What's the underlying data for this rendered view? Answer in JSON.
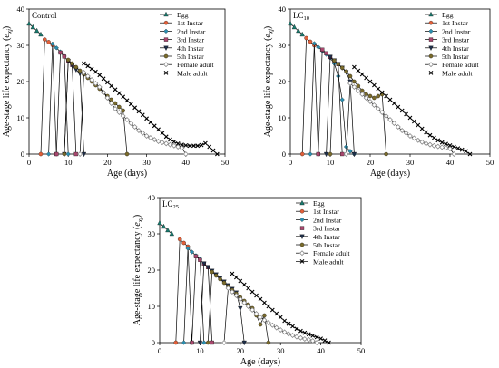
{
  "chart_data": [
    {
      "type": "line",
      "title": "",
      "panel_label": "Control",
      "panel_label_sub": "",
      "xlabel": "Age (days)",
      "ylabel": "Age-stage life expectancy",
      "ylabel_symbol": "e",
      "ylabel_sub": "xj",
      "xlim": [
        0,
        50
      ],
      "ylim": [
        0,
        40
      ],
      "xticks": [
        0,
        10,
        20,
        30,
        40,
        50
      ],
      "yticks": [
        0,
        10,
        20,
        30,
        40
      ],
      "legend_position": "top-right",
      "grid": false,
      "series": [
        {
          "name": "Egg",
          "marker": "triangle-up",
          "color": "#1a7a6e",
          "x": [
            0,
            1,
            2,
            3
          ],
          "y": [
            36.0,
            35.0,
            34.0,
            33.0
          ]
        },
        {
          "name": "1st Instar",
          "marker": "circle",
          "color": "#e2603a",
          "x": [
            3,
            4,
            5,
            6,
            7
          ],
          "y": [
            0,
            31.6,
            30.9,
            30.1,
            0
          ]
        },
        {
          "name": "2nd Instar",
          "marker": "diamond",
          "color": "#2a8fb0",
          "x": [
            5,
            6,
            7,
            8,
            9,
            10
          ],
          "y": [
            0,
            30.4,
            29.3,
            28.2,
            27.0,
            0
          ]
        },
        {
          "name": "3rd Instar",
          "marker": "square",
          "color": "#a8486e",
          "x": [
            7,
            8,
            9,
            10,
            11,
            12
          ],
          "y": [
            0,
            28.0,
            26.9,
            25.7,
            24.6,
            0
          ]
        },
        {
          "name": "4th Instar",
          "marker": "triangle-down",
          "color": "#1f2f4a",
          "x": [
            9,
            10,
            11,
            12,
            13,
            14
          ],
          "y": [
            0,
            25.7,
            24.5,
            23.3,
            22.2,
            0
          ]
        },
        {
          "name": "5th Instar",
          "marker": "circle",
          "color": "#7a6b2c",
          "x": [
            9,
            10,
            11,
            12,
            13,
            14,
            15,
            16,
            17,
            18,
            19,
            20,
            21,
            22,
            23,
            24,
            25
          ],
          "y": [
            0,
            26.0,
            25.0,
            24.0,
            23.0,
            22.0,
            21.0,
            20.0,
            19.0,
            18.0,
            17.0,
            16.0,
            15.0,
            14.0,
            13.0,
            12.0,
            0
          ]
        },
        {
          "name": "Female adult",
          "marker": "diamond-open",
          "color": "#888888",
          "x": [
            13,
            14,
            15,
            16,
            17,
            18,
            19,
            20,
            21,
            22,
            23,
            24,
            25,
            26,
            27,
            28,
            29,
            30,
            31,
            32,
            33,
            34,
            35,
            36,
            37,
            38,
            39,
            40
          ],
          "y": [
            0,
            22.5,
            21.5,
            20.5,
            19.5,
            18.5,
            17.0,
            15.5,
            14.0,
            12.5,
            11.5,
            10.5,
            9.5,
            8.5,
            7.5,
            6.5,
            5.8,
            5.0,
            4.5,
            4.0,
            3.5,
            3.2,
            2.9,
            2.6,
            2.3,
            2.0,
            1.7,
            0
          ]
        },
        {
          "name": "Male adult",
          "marker": "x",
          "color": "#000000",
          "x": [
            14,
            15,
            16,
            17,
            18,
            19,
            20,
            21,
            22,
            23,
            24,
            25,
            26,
            27,
            28,
            29,
            30,
            31,
            32,
            33,
            34,
            35,
            36,
            37,
            38,
            39,
            40,
            41,
            42,
            43,
            44,
            45,
            46,
            47,
            48
          ],
          "y": [
            25.0,
            24.3,
            23.5,
            22.7,
            21.8,
            20.8,
            19.8,
            18.8,
            17.8,
            16.8,
            15.8,
            14.8,
            13.8,
            12.8,
            11.8,
            10.8,
            9.8,
            8.8,
            7.8,
            6.8,
            5.8,
            4.8,
            4.0,
            3.4,
            2.9,
            2.6,
            2.4,
            2.3,
            2.3,
            2.3,
            2.5,
            3.0,
            2.0,
            1.0,
            0
          ]
        }
      ]
    },
    {
      "type": "line",
      "title": "",
      "panel_label": "LC",
      "panel_label_sub": "10",
      "xlabel": "Age (days)",
      "ylabel": "Age-stage life expectancy",
      "ylabel_symbol": "e",
      "ylabel_sub": "xj",
      "xlim": [
        0,
        50
      ],
      "ylim": [
        0,
        40
      ],
      "xticks": [
        0,
        10,
        20,
        30,
        40,
        50
      ],
      "yticks": [
        0,
        10,
        20,
        30,
        40
      ],
      "legend_position": "top-right",
      "grid": false,
      "series": [
        {
          "name": "Egg",
          "marker": "triangle-up",
          "color": "#1a7a6e",
          "x": [
            0,
            1,
            2,
            3
          ],
          "y": [
            36.0,
            35.0,
            34.0,
            33.0
          ]
        },
        {
          "name": "1st Instar",
          "marker": "circle",
          "color": "#e2603a",
          "x": [
            3,
            4,
            5,
            6,
            7
          ],
          "y": [
            0,
            32.0,
            31.0,
            30.0,
            0
          ]
        },
        {
          "name": "2nd Instar",
          "marker": "diamond",
          "color": "#2a8fb0",
          "x": [
            5,
            6,
            7,
            8,
            9,
            10,
            11,
            12,
            13,
            14,
            15,
            16
          ],
          "y": [
            0,
            30.5,
            29.5,
            28.5,
            27.5,
            26.5,
            25.0,
            21.5,
            15.0,
            2.0,
            0.8,
            0
          ]
        },
        {
          "name": "3rd Instar",
          "marker": "square",
          "color": "#a8486e",
          "x": [
            7,
            8,
            9,
            10,
            11,
            12,
            13
          ],
          "y": [
            0,
            28.8,
            27.8,
            26.8,
            25.8,
            24.8,
            0
          ]
        },
        {
          "name": "4th Instar",
          "marker": "triangle-down",
          "color": "#1f2f4a",
          "x": [
            9,
            10,
            11,
            12,
            13,
            14,
            15,
            16
          ],
          "y": [
            0,
            26.8,
            25.8,
            24.8,
            23.8,
            22.6,
            20.0,
            0
          ]
        },
        {
          "name": "5th Instar",
          "marker": "circle",
          "color": "#7a6b2c",
          "x": [
            10,
            11,
            12,
            13,
            14,
            15,
            16,
            17,
            18,
            19,
            20,
            21,
            22,
            23,
            24
          ],
          "y": [
            0,
            25.8,
            24.8,
            23.8,
            22.8,
            21.5,
            20.0,
            18.8,
            17.5,
            16.5,
            16.0,
            15.5,
            16.0,
            16.5,
            0
          ]
        },
        {
          "name": "Female adult",
          "marker": "diamond-open",
          "color": "#888888",
          "x": [
            14,
            15,
            16,
            17,
            18,
            19,
            20,
            21,
            22,
            23,
            24,
            25,
            26,
            27,
            28,
            29,
            30,
            31,
            32,
            33,
            34,
            35,
            36,
            37,
            38,
            39,
            40,
            41
          ],
          "y": [
            0,
            19.5,
            18.5,
            17.5,
            16.5,
            15.5,
            14.5,
            13.5,
            12.5,
            11.5,
            10.5,
            9.5,
            8.5,
            7.5,
            6.5,
            5.8,
            5.0,
            4.4,
            3.8,
            3.3,
            2.9,
            2.6,
            2.3,
            2.1,
            1.9,
            1.7,
            1.5,
            0
          ]
        },
        {
          "name": "Male adult",
          "marker": "x",
          "color": "#000000",
          "x": [
            16,
            17,
            18,
            19,
            20,
            21,
            22,
            23,
            24,
            25,
            26,
            27,
            28,
            29,
            30,
            31,
            32,
            33,
            34,
            35,
            36,
            37,
            38,
            39,
            40,
            41,
            42,
            43,
            44,
            45
          ],
          "y": [
            24.0,
            23.0,
            22.0,
            21.0,
            20.0,
            19.0,
            18.0,
            17.0,
            16.0,
            15.0,
            14.0,
            13.0,
            12.0,
            11.0,
            10.0,
            9.0,
            8.0,
            7.0,
            6.0,
            5.2,
            4.5,
            3.8,
            3.2,
            2.8,
            2.4,
            2.0,
            1.6,
            1.2,
            0.8,
            0
          ]
        }
      ]
    },
    {
      "type": "line",
      "title": "",
      "panel_label": "LC",
      "panel_label_sub": "25",
      "xlabel": "Age (days)",
      "ylabel": "Age-stage life expectancy",
      "ylabel_symbol": "e",
      "ylabel_sub": "xj",
      "xlim": [
        0,
        50
      ],
      "ylim": [
        0,
        40
      ],
      "xticks": [
        0,
        10,
        20,
        30,
        40,
        50
      ],
      "yticks": [
        0,
        10,
        20,
        30,
        40
      ],
      "legend_position": "top-right",
      "grid": false,
      "series": [
        {
          "name": "Egg",
          "marker": "triangle-up",
          "color": "#1a7a6e",
          "x": [
            0,
            1,
            2,
            3
          ],
          "y": [
            33.0,
            32.0,
            31.0,
            30.0
          ]
        },
        {
          "name": "1st Instar",
          "marker": "circle",
          "color": "#e2603a",
          "x": [
            4,
            5,
            6,
            7,
            8
          ],
          "y": [
            0,
            28.5,
            27.5,
            26.5,
            0
          ]
        },
        {
          "name": "2nd Instar",
          "marker": "diamond",
          "color": "#2a8fb0",
          "x": [
            6,
            7,
            8,
            9,
            10,
            11
          ],
          "y": [
            0,
            26.0,
            25.0,
            24.0,
            23.0,
            0
          ]
        },
        {
          "name": "3rd Instar",
          "marker": "square",
          "color": "#a8486e",
          "x": [
            8,
            9,
            10,
            11,
            12,
            13
          ],
          "y": [
            0,
            23.8,
            22.8,
            21.8,
            20.8,
            0
          ]
        },
        {
          "name": "4th Instar",
          "marker": "triangle-down",
          "color": "#1f2f4a",
          "x": [
            10,
            11,
            12,
            13,
            14,
            15,
            16,
            17,
            18,
            19,
            20,
            21
          ],
          "y": [
            0,
            21.8,
            20.8,
            19.8,
            18.8,
            17.8,
            16.8,
            15.8,
            14.8,
            13.8,
            9.5,
            0
          ]
        },
        {
          "name": "5th Instar",
          "marker": "circle",
          "color": "#7a6b2c",
          "x": [
            12,
            13,
            14,
            15,
            16,
            17,
            18,
            19,
            20,
            21,
            22,
            23,
            24,
            25,
            26,
            27
          ],
          "y": [
            0,
            19.5,
            18.5,
            17.5,
            16.5,
            15.5,
            14.5,
            13.5,
            12.5,
            11.5,
            10.5,
            9.5,
            7.5,
            5.0,
            7.5,
            0
          ]
        },
        {
          "name": "Female adult",
          "marker": "diamond-open",
          "color": "#888888",
          "x": [
            16,
            17,
            18,
            19,
            20,
            21,
            22,
            23,
            24,
            25,
            26,
            27,
            28,
            29,
            30,
            31,
            32,
            33,
            34,
            35,
            36,
            37,
            38,
            39
          ],
          "y": [
            0,
            15.0,
            14.0,
            13.0,
            12.0,
            11.0,
            10.0,
            9.0,
            8.0,
            7.0,
            6.2,
            5.5,
            4.8,
            4.1,
            3.5,
            2.9,
            2.4,
            2.0,
            1.6,
            1.3,
            1.0,
            0.8,
            0.5,
            0
          ]
        },
        {
          "name": "Male adult",
          "marker": "x",
          "color": "#000000",
          "x": [
            18,
            19,
            20,
            21,
            22,
            23,
            24,
            25,
            26,
            27,
            28,
            29,
            30,
            31,
            32,
            33,
            34,
            35,
            36,
            37,
            38,
            39,
            40,
            41,
            42
          ],
          "y": [
            19.0,
            18.0,
            17.0,
            16.0,
            15.0,
            14.0,
            13.0,
            12.0,
            11.0,
            10.0,
            9.0,
            8.0,
            7.0,
            6.0,
            5.2,
            4.5,
            3.8,
            3.2,
            2.7,
            2.3,
            1.9,
            1.5,
            1.1,
            0.6,
            0
          ]
        }
      ]
    }
  ]
}
